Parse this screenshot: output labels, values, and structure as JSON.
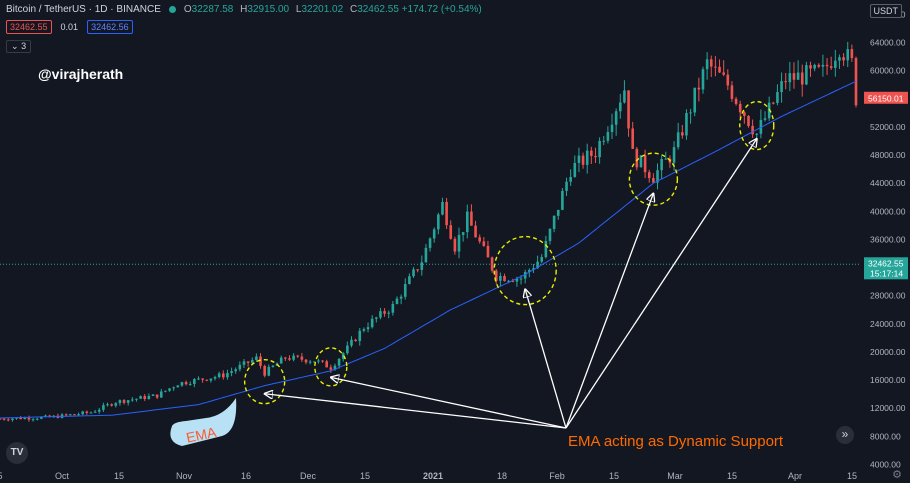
{
  "header": {
    "symbol": "Bitcoin / TetherUS · 1D · BINANCE",
    "open_label": "O",
    "open": "32287.58",
    "high_label": "H",
    "high": "32915.00",
    "low_label": "L",
    "low": "32201.02",
    "close_label": "C",
    "close": "32462.55 +174.72 (+0.54%)"
  },
  "badges": {
    "sell": "32462.55",
    "spread": "0.01",
    "buy": "32462.56"
  },
  "indicator_toggle": "3",
  "watermark": "@virajherath",
  "currency": "USDT",
  "scroll_right_icon": "double-chevron-right-icon",
  "settings_icon": "gear-icon",
  "chart_data": {
    "type": "candlestick",
    "title": "",
    "symbol": "Bitcoin / TetherUS",
    "interval": "1D",
    "exchange": "BINANCE",
    "ylim": [
      3200,
      67500
    ],
    "y_ticks": [
      4000,
      8000,
      12000,
      16000,
      20000,
      24000,
      28000,
      32000,
      36000,
      40000,
      44000,
      48000,
      52000,
      56000,
      60000,
      64000,
      68000
    ],
    "y_tick_labels": [
      "4000.00",
      "8000.00",
      "12000.00",
      "16000.00",
      "20000.00",
      "24000.00",
      "28000.00",
      "32000.00",
      "36000.00",
      "40000.00",
      "44000.00",
      "48000.00",
      "52000.00",
      "56000.00",
      "60000.00",
      "64000.00",
      "68000.00"
    ],
    "x_tick_labels": [
      "5",
      "Oct",
      "15",
      "Nov",
      "16",
      "Dec",
      "15",
      "2021",
      "18",
      "Feb",
      "15",
      "Mar",
      "15",
      "Apr",
      "15"
    ],
    "date_range": [
      "2020-09-23",
      "2021-04-18"
    ],
    "grid": false,
    "current_price": {
      "value": 32462.55,
      "label": "32462.55",
      "countdown": "15:17:14"
    },
    "marker_price": {
      "value": 56150.01,
      "label": "56150.01"
    },
    "ema_color": "#2962ff",
    "up_color": "#26a69a",
    "down_color": "#ef5350",
    "price_path": [
      [
        "2020-09-23",
        10500
      ],
      [
        "2020-10-05",
        10700
      ],
      [
        "2020-10-15",
        11400
      ],
      [
        "2020-10-21",
        12900
      ],
      [
        "2020-10-31",
        13800
      ],
      [
        "2020-11-05",
        15500
      ],
      [
        "2020-11-16",
        16700
      ],
      [
        "2020-11-24",
        19100
      ],
      [
        "2020-11-26",
        17000
      ],
      [
        "2020-12-01",
        19200
      ],
      [
        "2020-12-08",
        18800
      ],
      [
        "2020-12-12",
        17800
      ],
      [
        "2020-12-16",
        20500
      ],
      [
        "2020-12-20",
        23500
      ],
      [
        "2020-12-27",
        26500
      ],
      [
        "2021-01-03",
        33000
      ],
      [
        "2021-01-08",
        41000
      ],
      [
        "2021-01-11",
        35000
      ],
      [
        "2021-01-14",
        39000
      ],
      [
        "2021-01-21",
        30800
      ],
      [
        "2021-01-27",
        30500
      ],
      [
        "2021-02-01",
        33500
      ],
      [
        "2021-02-08",
        46000
      ],
      [
        "2021-02-14",
        48500
      ],
      [
        "2021-02-21",
        57500
      ],
      [
        "2021-02-23",
        48000
      ],
      [
        "2021-02-28",
        45000
      ],
      [
        "2021-03-05",
        48500
      ],
      [
        "2021-03-13",
        61000
      ],
      [
        "2021-03-18",
        58000
      ],
      [
        "2021-03-25",
        51000
      ],
      [
        "2021-04-01",
        58800
      ],
      [
        "2021-04-10",
        59800
      ],
      [
        "2021-04-14",
        63500
      ],
      [
        "2021-04-17",
        61000
      ],
      [
        "2021-04-18",
        56150
      ]
    ],
    "ema_path": [
      [
        "2020-09-23",
        10600
      ],
      [
        "2020-10-20",
        11000
      ],
      [
        "2020-11-10",
        12500
      ],
      [
        "2020-11-26",
        15200
      ],
      [
        "2020-12-12",
        17300
      ],
      [
        "2020-12-25",
        20500
      ],
      [
        "2021-01-10",
        26000
      ],
      [
        "2021-01-28",
        31000
      ],
      [
        "2021-02-10",
        35500
      ],
      [
        "2021-02-28",
        44000
      ],
      [
        "2021-03-15",
        48500
      ],
      [
        "2021-03-31",
        53500
      ],
      [
        "2021-04-18",
        58500
      ]
    ],
    "support_circles": [
      "2020-11-26",
      "2020-12-12",
      "2021-01-28",
      "2021-02-28",
      "2021-03-25"
    ],
    "annotations": [
      {
        "text": "EMA acting as Dynamic Support",
        "color": "#ff6a00"
      },
      {
        "text": "EMA",
        "color": "#ff5a2a",
        "fill": "#b8e1f5"
      }
    ]
  }
}
